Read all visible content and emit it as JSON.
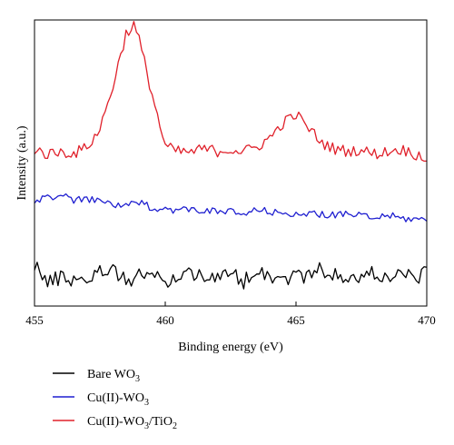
{
  "chart_data": {
    "type": "line",
    "xlabel": "Binding energy (eV)",
    "ylabel": "Intensity (a.u.)",
    "xlim": [
      455,
      470
    ],
    "ylim": [
      0,
      1
    ],
    "x_ticks": [
      "455",
      "460",
      "465",
      "470"
    ],
    "grid": false,
    "y_tick_labels": false,
    "legend_position": "below-left",
    "series": [
      {
        "name": "Bare WO3",
        "legend_main": "Bare WO",
        "legend_sub": "3",
        "legend_tail": "",
        "legend_tail_sub": "",
        "color": "#000000",
        "y_points": [
          [
            455.0,
            0.153
          ],
          [
            455.5,
            0.078
          ],
          [
            456.0,
            0.103
          ],
          [
            456.5,
            0.093
          ],
          [
            457.0,
            0.097
          ],
          [
            457.5,
            0.118
          ],
          [
            458.0,
            0.138
          ],
          [
            458.5,
            0.082
          ],
          [
            459.0,
            0.118
          ],
          [
            459.5,
            0.102
          ],
          [
            460.0,
            0.086
          ],
          [
            460.5,
            0.102
          ],
          [
            461.0,
            0.118
          ],
          [
            461.5,
            0.112
          ],
          [
            462.0,
            0.09
          ],
          [
            462.5,
            0.116
          ],
          [
            463.0,
            0.087
          ],
          [
            463.5,
            0.132
          ],
          [
            464.0,
            0.108
          ],
          [
            464.5,
            0.091
          ],
          [
            465.0,
            0.112
          ],
          [
            465.5,
            0.103
          ],
          [
            466.0,
            0.132
          ],
          [
            466.5,
            0.105
          ],
          [
            467.0,
            0.087
          ],
          [
            467.5,
            0.103
          ],
          [
            468.0,
            0.117
          ],
          [
            468.5,
            0.098
          ],
          [
            469.0,
            0.113
          ],
          [
            469.5,
            0.101
          ],
          [
            470.0,
            0.112
          ]
        ]
      },
      {
        "name": "Cu(II)-WO3",
        "legend_main": "Cu(II)-WO",
        "legend_sub": "3",
        "legend_tail": "",
        "legend_tail_sub": "",
        "color": "#1f1fd0",
        "y_points": [
          [
            455.0,
            0.37
          ],
          [
            455.5,
            0.382
          ],
          [
            456.0,
            0.387
          ],
          [
            456.5,
            0.371
          ],
          [
            457.0,
            0.371
          ],
          [
            457.5,
            0.368
          ],
          [
            458.0,
            0.355
          ],
          [
            458.5,
            0.35
          ],
          [
            459.0,
            0.36
          ],
          [
            459.5,
            0.345
          ],
          [
            460.0,
            0.34
          ],
          [
            460.5,
            0.335
          ],
          [
            461.0,
            0.338
          ],
          [
            461.5,
            0.335
          ],
          [
            462.0,
            0.328
          ],
          [
            462.5,
            0.33
          ],
          [
            463.0,
            0.318
          ],
          [
            463.5,
            0.337
          ],
          [
            464.0,
            0.328
          ],
          [
            464.5,
            0.322
          ],
          [
            465.0,
            0.327
          ],
          [
            465.5,
            0.317
          ],
          [
            466.0,
            0.324
          ],
          [
            466.5,
            0.315
          ],
          [
            467.0,
            0.322
          ],
          [
            467.5,
            0.315
          ],
          [
            468.0,
            0.306
          ],
          [
            468.5,
            0.318
          ],
          [
            469.0,
            0.306
          ],
          [
            469.5,
            0.304
          ],
          [
            470.0,
            0.301
          ]
        ]
      },
      {
        "name": "Cu(II)-WO3/TiO2",
        "legend_main": "Cu(II)-WO",
        "legend_sub": "3",
        "legend_tail": "/TiO",
        "legend_tail_sub": "2",
        "color": "#e0202a",
        "y_points": [
          [
            455.0,
            0.549
          ],
          [
            455.5,
            0.53
          ],
          [
            456.0,
            0.54
          ],
          [
            456.5,
            0.533
          ],
          [
            457.0,
            0.555
          ],
          [
            457.5,
            0.618
          ],
          [
            458.0,
            0.77
          ],
          [
            458.5,
            0.952
          ],
          [
            458.8,
            0.983
          ],
          [
            459.0,
            0.93
          ],
          [
            459.5,
            0.74
          ],
          [
            460.0,
            0.557
          ],
          [
            460.5,
            0.54
          ],
          [
            461.0,
            0.538
          ],
          [
            461.5,
            0.55
          ],
          [
            462.0,
            0.541
          ],
          [
            462.5,
            0.548
          ],
          [
            463.0,
            0.54
          ],
          [
            463.5,
            0.556
          ],
          [
            464.0,
            0.588
          ],
          [
            464.5,
            0.64
          ],
          [
            465.0,
            0.67
          ],
          [
            465.5,
            0.62
          ],
          [
            466.0,
            0.57
          ],
          [
            466.5,
            0.548
          ],
          [
            467.0,
            0.542
          ],
          [
            467.5,
            0.545
          ],
          [
            468.0,
            0.532
          ],
          [
            468.5,
            0.54
          ],
          [
            469.0,
            0.548
          ],
          [
            469.5,
            0.533
          ],
          [
            470.0,
            0.52
          ]
        ]
      }
    ]
  }
}
